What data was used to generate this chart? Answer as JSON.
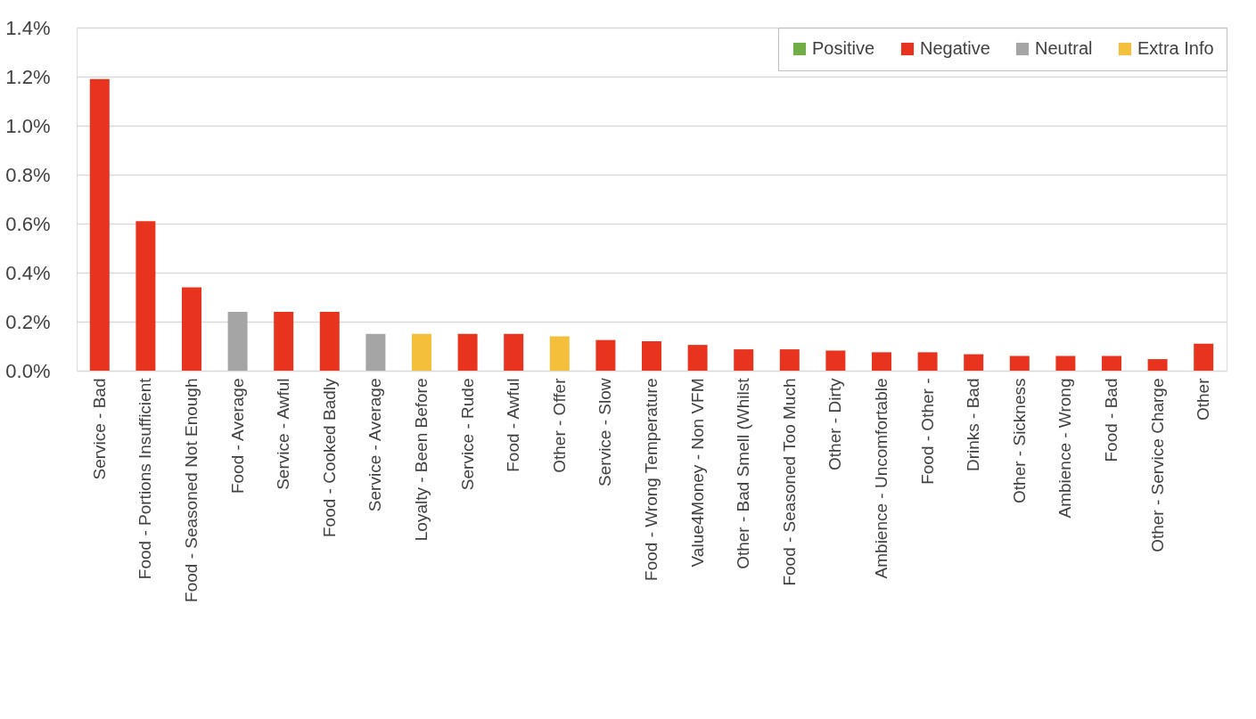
{
  "chart_data": {
    "type": "bar",
    "categories": [
      "Service - Bad",
      "Food - Portions Insufficient",
      "Food - Seasoned Not Enough",
      "Food - Average",
      "Service - Awful",
      "Food - Cooked Badly",
      "Service - Average",
      "Loyalty - Been Before",
      "Service - Rude",
      "Food - Awful",
      "Other - Offer",
      "Service - Slow",
      "Food - Wrong Temperature",
      "Value4Money - Non VFM",
      "Other - Bad Smell (Whilst",
      "Food - Seasoned Too Much",
      "Other - Dirty",
      "Ambience - Uncomfortable",
      "Food -   Other -",
      "Drinks - Bad",
      "Other - Sickness",
      "Ambience - Wrong",
      "Food - Bad",
      "Other - Service  Charge",
      "Other"
    ],
    "series": [
      {
        "name": "Positive",
        "color": "#70ad47",
        "values": [
          null,
          null,
          null,
          null,
          null,
          null,
          null,
          null,
          null,
          null,
          null,
          null,
          null,
          null,
          null,
          null,
          null,
          null,
          null,
          null,
          null,
          null,
          null,
          null,
          null
        ]
      },
      {
        "name": "Negative",
        "color": "#e8331f",
        "values": [
          1.19,
          0.61,
          0.34,
          null,
          0.24,
          0.24,
          null,
          null,
          0.15,
          0.15,
          null,
          0.125,
          0.12,
          0.105,
          0.087,
          0.087,
          0.082,
          0.075,
          0.075,
          0.067,
          0.06,
          0.06,
          0.06,
          0.047,
          0.11
        ]
      },
      {
        "name": "Neutral",
        "color": "#a5a5a5",
        "values": [
          null,
          null,
          null,
          0.24,
          null,
          null,
          0.15,
          null,
          null,
          null,
          null,
          null,
          null,
          null,
          null,
          null,
          null,
          null,
          null,
          null,
          null,
          null,
          null,
          null,
          null
        ]
      },
      {
        "name": "Extra Info",
        "color": "#f4bf3a",
        "values": [
          null,
          null,
          null,
          null,
          null,
          null,
          null,
          0.15,
          null,
          null,
          0.14,
          null,
          null,
          null,
          null,
          null,
          null,
          null,
          null,
          null,
          null,
          null,
          null,
          null,
          null
        ]
      }
    ],
    "ylim": [
      0,
      1.4
    ],
    "yticks": [
      {
        "value": 0,
        "label": "0.0%"
      },
      {
        "value": 0.2,
        "label": "0.2%"
      },
      {
        "value": 0.4,
        "label": "0.4%"
      },
      {
        "value": 0.6,
        "label": "0.6%"
      },
      {
        "value": 0.8,
        "label": "0.8%"
      },
      {
        "value": 1.0,
        "label": "1.0%"
      },
      {
        "value": 1.2,
        "label": "1.2%"
      },
      {
        "value": 1.4,
        "label": "1.4%"
      }
    ],
    "grid": "y",
    "legend": "top right"
  }
}
